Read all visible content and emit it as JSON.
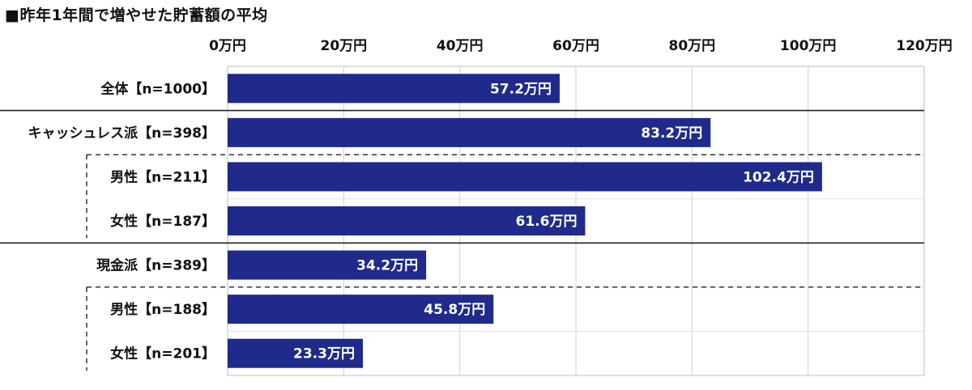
{
  "chart_data": {
    "type": "bar",
    "orientation": "horizontal",
    "title": "■昨年1年間で増やせた貯蓄額の平均",
    "unit": "万円",
    "xlim": [
      0,
      120
    ],
    "ticks": [
      0,
      20,
      40,
      60,
      80,
      100,
      120
    ],
    "tick_labels": [
      "0万円",
      "20万円",
      "40万円",
      "60万円",
      "80万円",
      "100万円",
      "120万円"
    ],
    "bar_color": "#1f2a8a",
    "categories": [
      "全体【n=1000】",
      "キャッシュレス派【n=398】",
      "男性【n=211】",
      "女性【n=187】",
      "現金派【n=389】",
      "男性【n=188】",
      "女性【n=201】"
    ],
    "values": [
      57.2,
      83.2,
      102.4,
      61.6,
      34.2,
      45.8,
      23.3
    ],
    "data_labels": [
      "57.2万円",
      "83.2万円",
      "102.4万円",
      "61.6万円",
      "34.2万円",
      "45.8万円",
      "23.3万円"
    ],
    "grid": true,
    "legend": "none"
  }
}
